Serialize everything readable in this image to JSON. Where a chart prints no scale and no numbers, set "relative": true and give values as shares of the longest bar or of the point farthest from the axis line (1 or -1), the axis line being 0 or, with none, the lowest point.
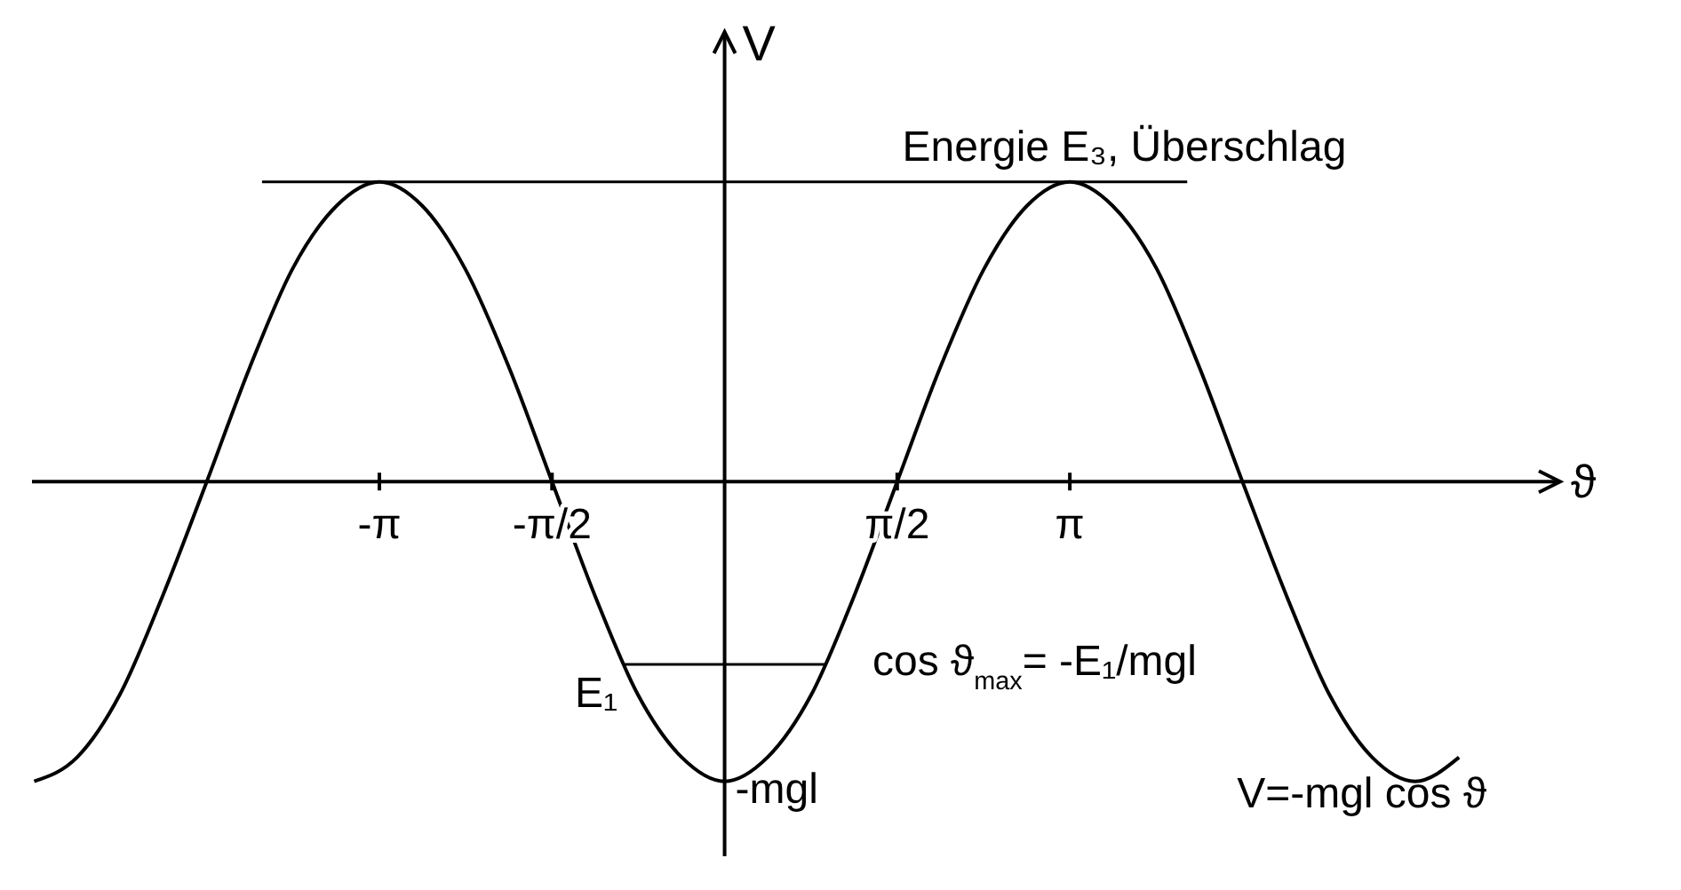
{
  "chart_data": {
    "type": "line",
    "relative": true,
    "xlabel": "ϑ",
    "ylabel": "V",
    "x": [
      -6.28,
      -5.89,
      -5.5,
      -5.11,
      -4.71,
      -4.32,
      -3.93,
      -3.53,
      -3.14,
      -2.75,
      -2.36,
      -1.96,
      -1.57,
      -1.18,
      -0.79,
      -0.39,
      0,
      0.39,
      0.79,
      1.18,
      1.57,
      1.96,
      2.36,
      2.75,
      3.14,
      3.53,
      3.93,
      4.32,
      4.71,
      5.11,
      5.5,
      5.89,
      6.28,
      6.68
    ],
    "series": [
      {
        "name": "V=-mgl cos ϑ",
        "color": "#000000",
        "values": [
          -1,
          -0.92,
          -0.71,
          -0.38,
          0,
          0.38,
          0.71,
          0.92,
          1,
          0.92,
          0.71,
          0.38,
          0,
          -0.38,
          -0.71,
          -0.92,
          -1,
          -0.92,
          -0.71,
          -0.38,
          0,
          0.38,
          0.71,
          0.92,
          1,
          0.92,
          0.71,
          0.38,
          0,
          -0.38,
          -0.71,
          -0.92,
          -1,
          -0.92
        ]
      }
    ],
    "xlim": [
      -6.3,
      7.6
    ],
    "xticks": [
      {
        "value": -3.14,
        "label": "-π"
      },
      {
        "value": -1.57,
        "label": "-π/2"
      },
      {
        "value": 1.57,
        "label": "π/2"
      },
      {
        "value": 3.14,
        "label": "π"
      }
    ],
    "ref_lines": [
      {
        "axis": "y",
        "value": 1,
        "label": "Energie E₃, Überschlag"
      },
      {
        "axis": "y",
        "value": -0.61,
        "label": "E₁"
      }
    ],
    "annotations": [
      {
        "text": "-mgl",
        "x": 0,
        "y": -1
      },
      "cos ϑ$_{max}$= -E₁/mgl"
    ],
    "legend": false,
    "grid": false,
    "marker": "none",
    "line_style": "solid"
  }
}
